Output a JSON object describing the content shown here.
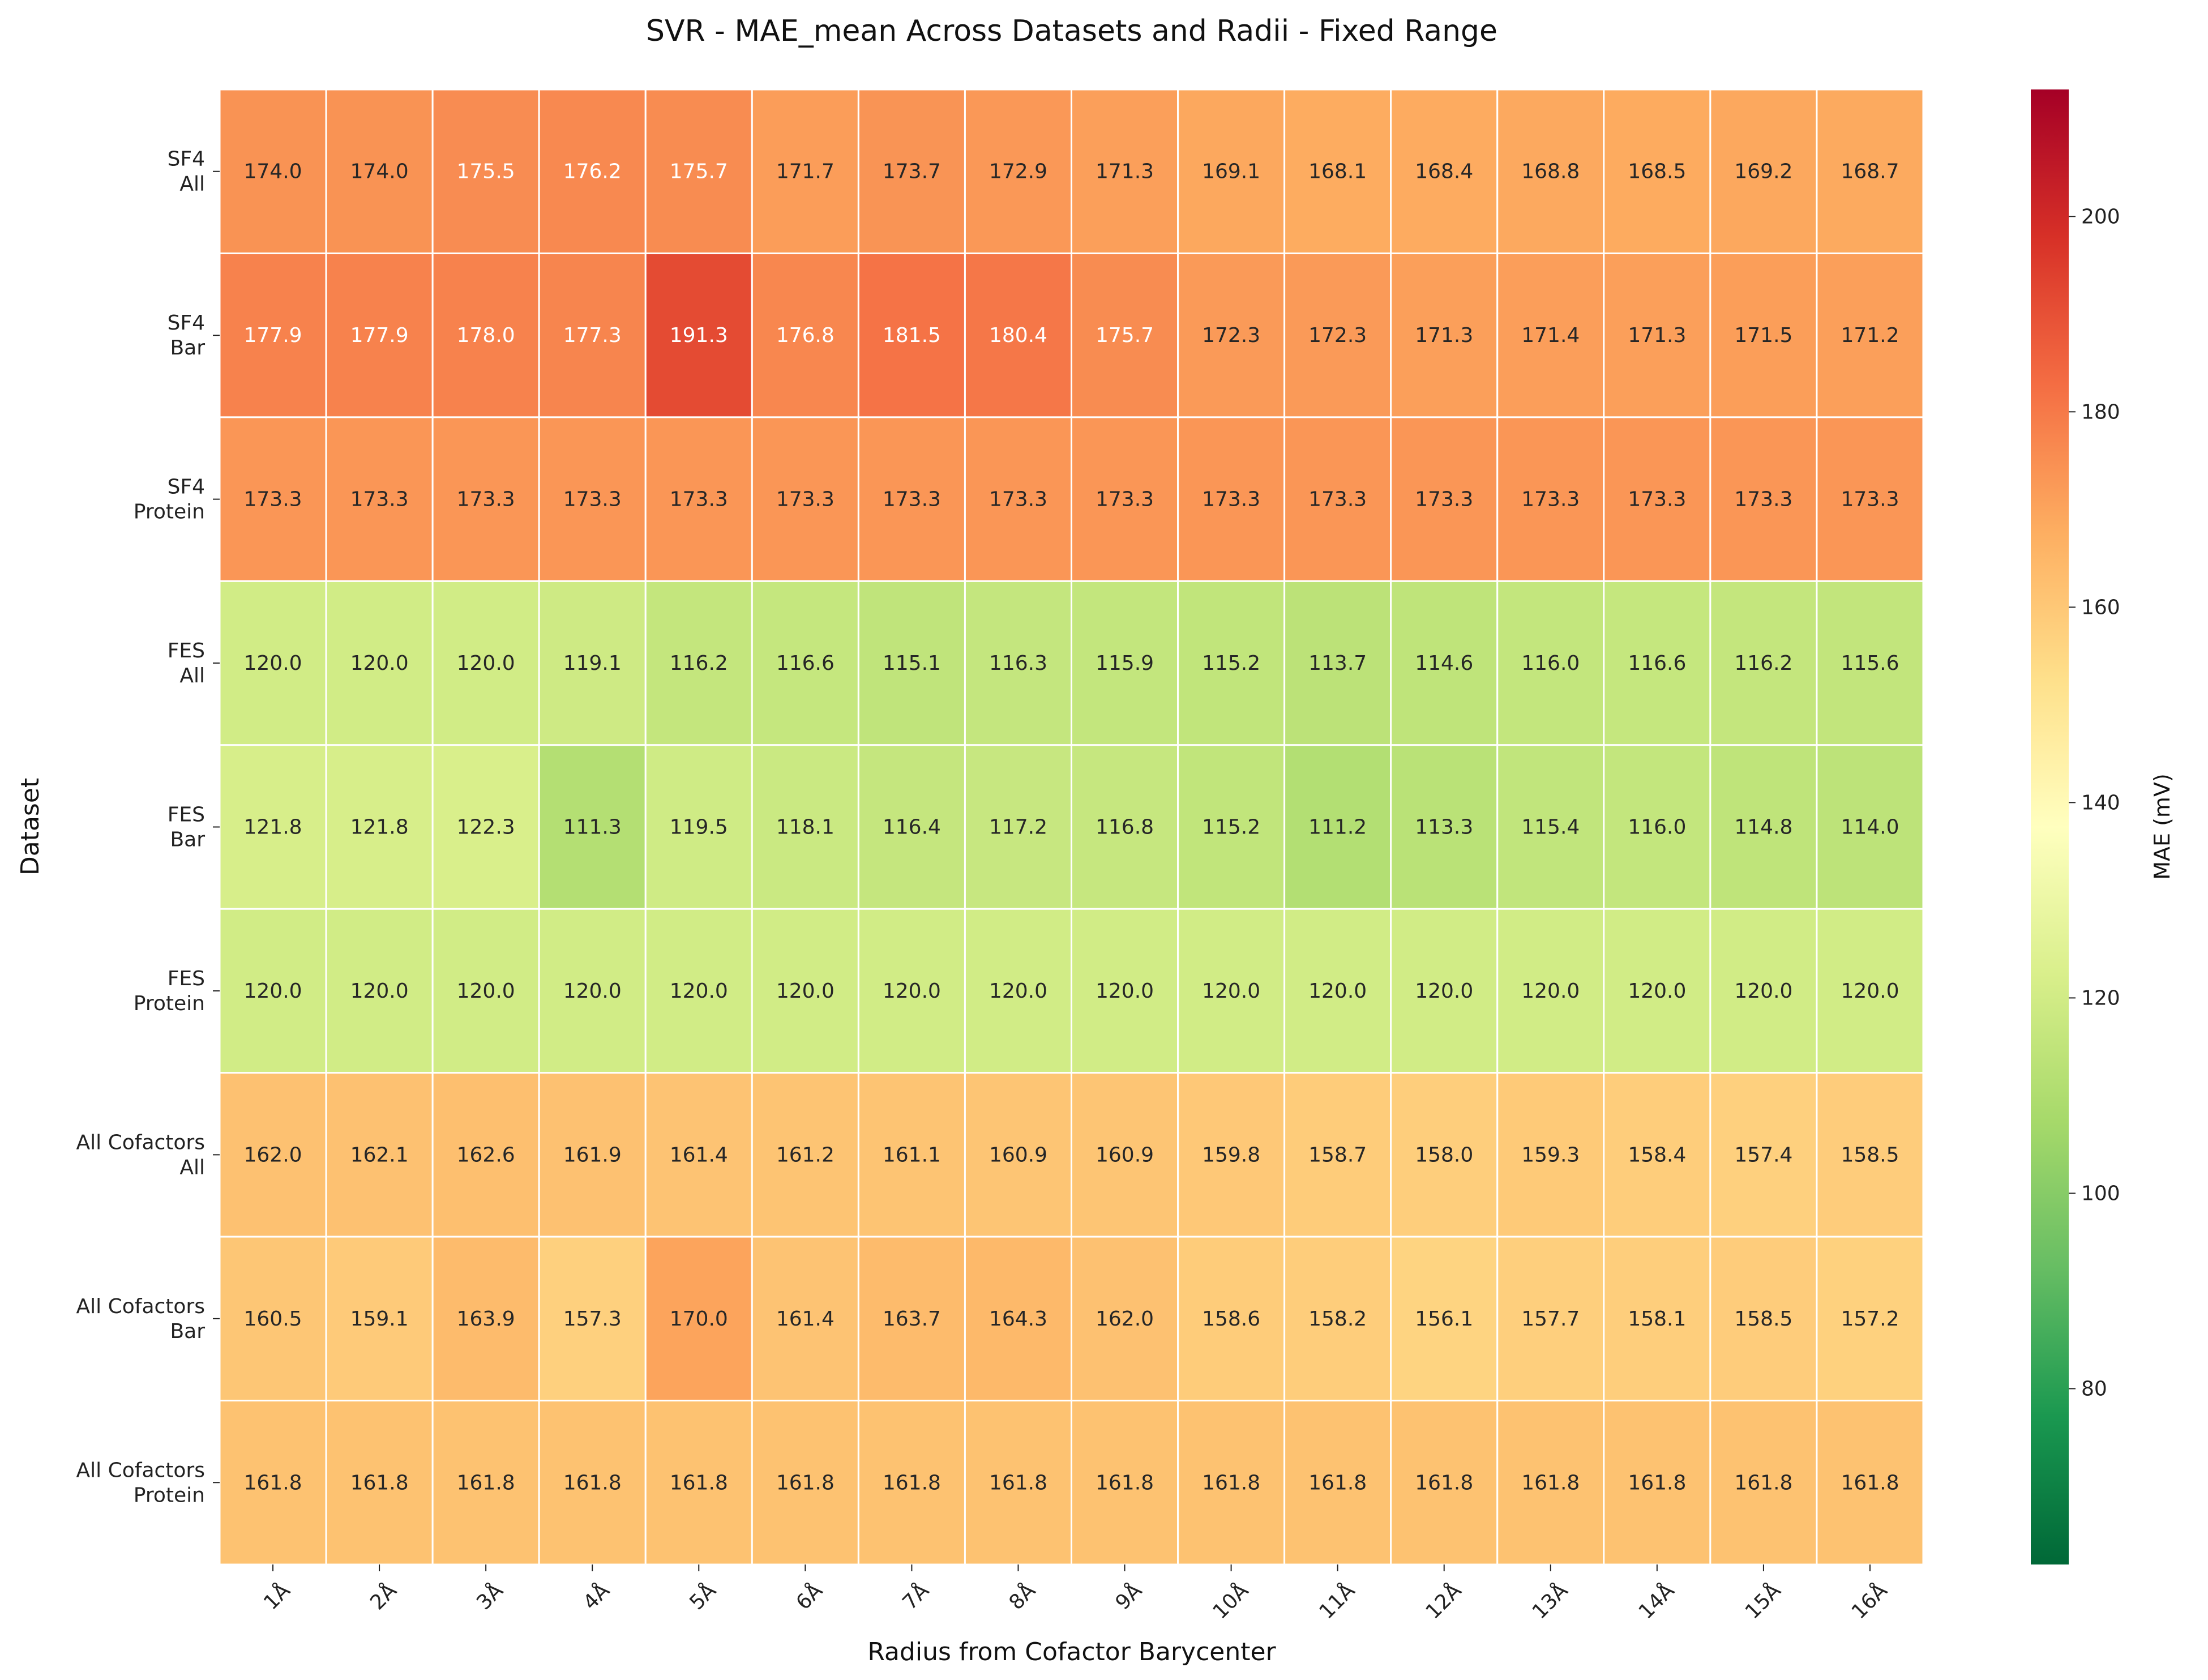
{
  "chart_data": {
    "type": "heatmap",
    "title": "SVR - MAE_mean Across Datasets and Radii - Fixed Range",
    "xlabel": "Radius from Cofactor Barycenter",
    "ylabel": "Dataset",
    "x_categories": [
      "1Å",
      "2Å",
      "3Å",
      "4Å",
      "5Å",
      "6Å",
      "7Å",
      "8Å",
      "9Å",
      "10Å",
      "11Å",
      "12Å",
      "13Å",
      "14Å",
      "15Å",
      "16Å"
    ],
    "y_categories": [
      [
        "SF4",
        "All"
      ],
      [
        "SF4",
        "Bar"
      ],
      [
        "SF4",
        "Protein"
      ],
      [
        "FES",
        "All"
      ],
      [
        "FES",
        "Bar"
      ],
      [
        "FES",
        "Protein"
      ],
      [
        "All Cofactors",
        "All"
      ],
      [
        "All Cofactors",
        "Bar"
      ],
      [
        "All Cofactors",
        "Protein"
      ]
    ],
    "values": [
      [
        174.0,
        174.0,
        175.5,
        176.2,
        175.7,
        171.7,
        173.7,
        172.9,
        171.3,
        169.1,
        168.1,
        168.4,
        168.8,
        168.5,
        169.2,
        168.7
      ],
      [
        177.9,
        177.9,
        178.0,
        177.3,
        191.3,
        176.8,
        181.5,
        180.4,
        175.7,
        172.3,
        172.3,
        171.3,
        171.4,
        171.3,
        171.5,
        171.2
      ],
      [
        173.3,
        173.3,
        173.3,
        173.3,
        173.3,
        173.3,
        173.3,
        173.3,
        173.3,
        173.3,
        173.3,
        173.3,
        173.3,
        173.3,
        173.3,
        173.3
      ],
      [
        120.0,
        120.0,
        120.0,
        119.1,
        116.2,
        116.6,
        115.1,
        116.3,
        115.9,
        115.2,
        113.7,
        114.6,
        116.0,
        116.6,
        116.2,
        115.6
      ],
      [
        121.8,
        121.8,
        122.3,
        111.3,
        119.5,
        118.1,
        116.4,
        117.2,
        116.8,
        115.2,
        111.2,
        113.3,
        115.4,
        116.0,
        114.8,
        114.0
      ],
      [
        120.0,
        120.0,
        120.0,
        120.0,
        120.0,
        120.0,
        120.0,
        120.0,
        120.0,
        120.0,
        120.0,
        120.0,
        120.0,
        120.0,
        120.0,
        120.0
      ],
      [
        162.0,
        162.1,
        162.6,
        161.9,
        161.4,
        161.2,
        161.1,
        160.9,
        160.9,
        159.8,
        158.7,
        158.0,
        159.3,
        158.4,
        157.4,
        158.5
      ],
      [
        160.5,
        159.1,
        163.9,
        157.3,
        170.0,
        161.4,
        163.7,
        164.3,
        162.0,
        158.6,
        158.2,
        156.1,
        157.7,
        158.1,
        158.5,
        157.2
      ],
      [
        161.8,
        161.8,
        161.8,
        161.8,
        161.8,
        161.8,
        161.8,
        161.8,
        161.8,
        161.8,
        161.8,
        161.8,
        161.8,
        161.8,
        161.8,
        161.8
      ]
    ],
    "colormap": "RdYlGn_r",
    "color_range": [
      62,
      213
    ],
    "colorbar": {
      "label": "MAE (mV)",
      "ticks": [
        80,
        100,
        120,
        140,
        160,
        180,
        200
      ]
    },
    "grid": false,
    "cell_border_color": "#ffffff"
  }
}
